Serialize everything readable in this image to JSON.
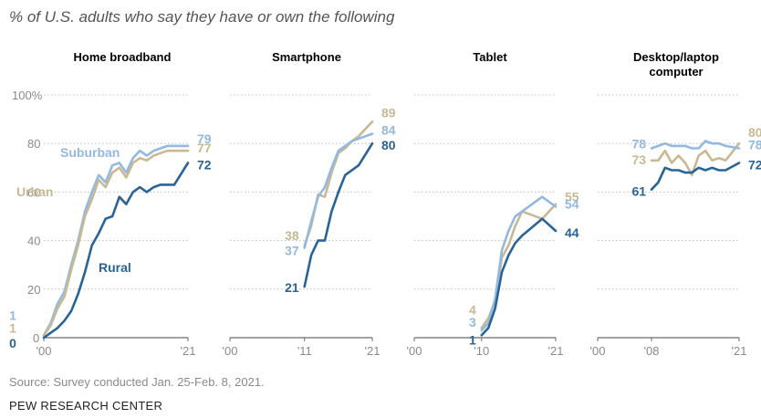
{
  "header": {
    "subtitle": "% of U.S. adults who say they have or own the following"
  },
  "footer": {
    "source": "Source: Survey conducted Jan. 25-Feb. 8, 2021.",
    "credit": "PEW RESEARCH CENTER"
  },
  "colors": {
    "Rural": "#2a6496",
    "Suburban": "#93b9e0",
    "Urban": "#c8b993",
    "grid": "#bdbdbd",
    "zero_line": "#6b6b6b"
  },
  "chart_data": [
    {
      "type": "line",
      "title": "Home broadband",
      "y_ticks": [
        "100%",
        "80",
        "60",
        "40",
        "20",
        "0"
      ],
      "ylim": [
        0,
        100
      ],
      "x_ticks": [
        "'00",
        "'21"
      ],
      "x_range": [
        2000,
        2021
      ],
      "series": [
        {
          "name": "Suburban",
          "name_shown": true,
          "end_label": "79",
          "start_label": "1",
          "points": [
            [
              2000,
              1
            ],
            [
              2001,
              6
            ],
            [
              2002,
              14
            ],
            [
              2003,
              19
            ],
            [
              2004,
              30
            ],
            [
              2005,
              40
            ],
            [
              2006,
              52
            ],
            [
              2007,
              60
            ],
            [
              2008,
              67
            ],
            [
              2009,
              64
            ],
            [
              2010,
              71
            ],
            [
              2011,
              72
            ],
            [
              2012,
              68
            ],
            [
              2013,
              74
            ],
            [
              2014,
              77
            ],
            [
              2015,
              75
            ],
            [
              2016,
              77
            ],
            [
              2017,
              78
            ],
            [
              2018,
              79
            ],
            [
              2019,
              79
            ],
            [
              2021,
              79
            ]
          ]
        },
        {
          "name": "Urban",
          "name_shown": true,
          "end_label": "77",
          "start_label": "1",
          "points": [
            [
              2000,
              1
            ],
            [
              2001,
              5
            ],
            [
              2002,
              12
            ],
            [
              2003,
              17
            ],
            [
              2004,
              28
            ],
            [
              2005,
              38
            ],
            [
              2006,
              50
            ],
            [
              2007,
              57
            ],
            [
              2008,
              65
            ],
            [
              2009,
              62
            ],
            [
              2010,
              68
            ],
            [
              2011,
              70
            ],
            [
              2012,
              66
            ],
            [
              2013,
              72
            ],
            [
              2014,
              74
            ],
            [
              2015,
              73
            ],
            [
              2016,
              75
            ],
            [
              2017,
              76
            ],
            [
              2018,
              77
            ],
            [
              2019,
              77
            ],
            [
              2021,
              77
            ]
          ]
        },
        {
          "name": "Rural",
          "name_shown": true,
          "end_label": "72",
          "start_label": "0",
          "points": [
            [
              2000,
              0
            ],
            [
              2001,
              2
            ],
            [
              2002,
              4
            ],
            [
              2003,
              7
            ],
            [
              2004,
              11
            ],
            [
              2005,
              18
            ],
            [
              2006,
              27
            ],
            [
              2007,
              38
            ],
            [
              2008,
              43
            ],
            [
              2009,
              49
            ],
            [
              2010,
              50
            ],
            [
              2011,
              58
            ],
            [
              2012,
              55
            ],
            [
              2013,
              60
            ],
            [
              2014,
              62
            ],
            [
              2015,
              60
            ],
            [
              2016,
              62
            ],
            [
              2017,
              63
            ],
            [
              2018,
              63
            ],
            [
              2019,
              63
            ],
            [
              2021,
              72
            ]
          ]
        }
      ]
    },
    {
      "type": "line",
      "title": "Smartphone",
      "x_ticks": [
        "'00",
        "'11",
        "'21"
      ],
      "x_range": [
        2000,
        2021
      ],
      "series": [
        {
          "name": "Urban",
          "end_label": "89",
          "start_label": "38",
          "points": [
            [
              2011,
              38
            ],
            [
              2012,
              46
            ],
            [
              2013,
              59
            ],
            [
              2014,
              58
            ],
            [
              2015,
              68
            ],
            [
              2016,
              76
            ],
            [
              2017,
              78
            ],
            [
              2018,
              81
            ],
            [
              2019,
              83
            ],
            [
              2021,
              89
            ]
          ]
        },
        {
          "name": "Suburban",
          "end_label": "84",
          "start_label": "37",
          "points": [
            [
              2011,
              37
            ],
            [
              2012,
              48
            ],
            [
              2013,
              58
            ],
            [
              2014,
              62
            ],
            [
              2015,
              70
            ],
            [
              2016,
              77
            ],
            [
              2017,
              79
            ],
            [
              2018,
              81
            ],
            [
              2019,
              82
            ],
            [
              2021,
              84
            ]
          ]
        },
        {
          "name": "Rural",
          "end_label": "80",
          "start_label": "21",
          "points": [
            [
              2011,
              21
            ],
            [
              2012,
              34
            ],
            [
              2013,
              40
            ],
            [
              2014,
              40
            ],
            [
              2015,
              52
            ],
            [
              2016,
              60
            ],
            [
              2017,
              67
            ],
            [
              2018,
              69
            ],
            [
              2019,
              71
            ],
            [
              2021,
              80
            ]
          ]
        }
      ]
    },
    {
      "type": "line",
      "title": "Tablet",
      "x_ticks": [
        "'00",
        "'10",
        "'21"
      ],
      "x_range": [
        2000,
        2021
      ],
      "series": [
        {
          "name": "Urban",
          "end_label": "55",
          "start_label": "4",
          "points": [
            [
              2010,
              4
            ],
            [
              2011,
              8
            ],
            [
              2012,
              15
            ],
            [
              2013,
              33
            ],
            [
              2014,
              38
            ],
            [
              2015,
              46
            ],
            [
              2016,
              52
            ],
            [
              2019,
              49
            ],
            [
              2021,
              55
            ]
          ]
        },
        {
          "name": "Suburban",
          "end_label": "54",
          "start_label": "3",
          "points": [
            [
              2010,
              3
            ],
            [
              2011,
              6
            ],
            [
              2012,
              16
            ],
            [
              2013,
              36
            ],
            [
              2014,
              44
            ],
            [
              2015,
              50
            ],
            [
              2016,
              52
            ],
            [
              2019,
              58
            ],
            [
              2021,
              54
            ]
          ]
        },
        {
          "name": "Rural",
          "end_label": "44",
          "start_label": "1",
          "points": [
            [
              2010,
              1
            ],
            [
              2011,
              4
            ],
            [
              2012,
              12
            ],
            [
              2013,
              27
            ],
            [
              2014,
              34
            ],
            [
              2015,
              39
            ],
            [
              2016,
              42
            ],
            [
              2019,
              49
            ],
            [
              2021,
              44
            ]
          ]
        }
      ]
    },
    {
      "type": "line",
      "title": "Desktop/laptop computer",
      "title_lines": [
        "Desktop/laptop",
        "computer"
      ],
      "x_ticks": [
        "'00",
        "'08",
        "'21"
      ],
      "x_range": [
        2000,
        2021
      ],
      "series": [
        {
          "name": "Urban",
          "end_label": "80",
          "start_label": "73",
          "points": [
            [
              2008,
              73
            ],
            [
              2009,
              73
            ],
            [
              2010,
              77
            ],
            [
              2011,
              72
            ],
            [
              2012,
              75
            ],
            [
              2013,
              72
            ],
            [
              2014,
              67
            ],
            [
              2015,
              75
            ],
            [
              2016,
              77
            ],
            [
              2017,
              73
            ],
            [
              2018,
              74
            ],
            [
              2019,
              73
            ],
            [
              2021,
              80
            ]
          ]
        },
        {
          "name": "Suburban",
          "end_label": "78",
          "start_label": "78",
          "points": [
            [
              2008,
              78
            ],
            [
              2009,
              79
            ],
            [
              2010,
              80
            ],
            [
              2011,
              79
            ],
            [
              2012,
              79
            ],
            [
              2013,
              79
            ],
            [
              2014,
              78
            ],
            [
              2015,
              78
            ],
            [
              2016,
              81
            ],
            [
              2017,
              80
            ],
            [
              2018,
              80
            ],
            [
              2019,
              79
            ],
            [
              2021,
              78
            ]
          ]
        },
        {
          "name": "Rural",
          "end_label": "72",
          "start_label": "61",
          "points": [
            [
              2008,
              61
            ],
            [
              2009,
              64
            ],
            [
              2010,
              70
            ],
            [
              2011,
              69
            ],
            [
              2012,
              69
            ],
            [
              2013,
              68
            ],
            [
              2014,
              68
            ],
            [
              2015,
              70
            ],
            [
              2016,
              69
            ],
            [
              2017,
              70
            ],
            [
              2018,
              69
            ],
            [
              2019,
              69
            ],
            [
              2021,
              72
            ]
          ]
        }
      ]
    }
  ]
}
